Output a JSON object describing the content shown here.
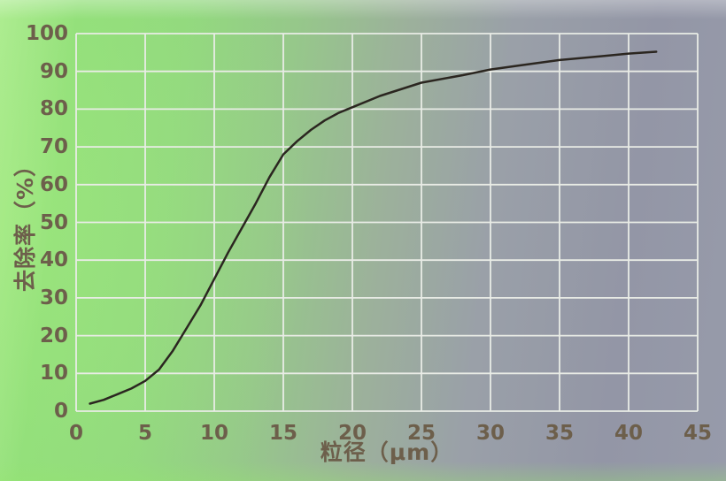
{
  "colors": {
    "background_left_green": "#8edc79",
    "background_right_gray": "#9397a7",
    "grid": "#e9ece6",
    "curve": "#2b2620",
    "label_text": "#6d5f4b"
  },
  "chart_data": {
    "type": "line",
    "title": "",
    "xlabel": "粒径（μm）",
    "ylabel": "去除率（%）",
    "xlim": [
      0,
      45
    ],
    "ylim": [
      0,
      100
    ],
    "xticks": [
      0,
      5,
      10,
      15,
      20,
      25,
      30,
      35,
      40,
      45
    ],
    "yticks": [
      0,
      10,
      20,
      30,
      40,
      50,
      60,
      70,
      80,
      90,
      100
    ],
    "grid": true,
    "legend": "none",
    "series": [
      {
        "name": "去除率",
        "x": [
          1,
          2,
          3,
          4,
          5,
          6,
          7,
          8,
          9,
          10,
          11,
          12,
          13,
          14,
          15,
          16,
          17,
          18,
          19,
          20,
          22,
          25,
          28,
          30,
          32,
          35,
          38,
          40,
          42
        ],
        "y": [
          2,
          3,
          4.5,
          6,
          8,
          11,
          16,
          22,
          28,
          35,
          42,
          48.5,
          55,
          62,
          68,
          71.5,
          74.5,
          77,
          79,
          80.5,
          83.5,
          87,
          89,
          90.5,
          91.5,
          93,
          94,
          94.7,
          95.2
        ]
      }
    ]
  }
}
